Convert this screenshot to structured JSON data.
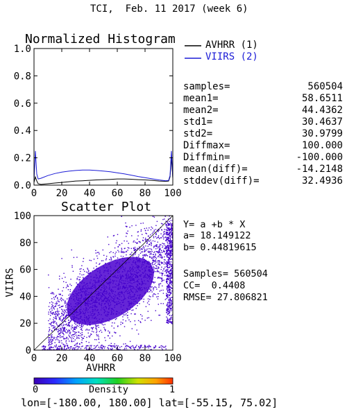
{
  "header": {
    "title": "TCI,  Feb. 11 2017 (week 6)"
  },
  "histogram": {
    "title": "Normalized Histogram",
    "legend": [
      {
        "label": "AVHRR (1)",
        "color": "#000000"
      },
      {
        "label": "VIIRS (2)",
        "color": "#1a1ad6"
      }
    ]
  },
  "stats": [
    {
      "key": "samples=",
      "value": "560504"
    },
    {
      "key": "mean1=",
      "value": "58.6511"
    },
    {
      "key": "mean2=",
      "value": "44.4362"
    },
    {
      "key": "std1=",
      "value": "30.4637"
    },
    {
      "key": "std2=",
      "value": "30.9799"
    },
    {
      "key": "Diffmax=",
      "value": "100.000"
    },
    {
      "key": "Diffmin=",
      "value": "-100.000"
    },
    {
      "key": "mean(diff)=",
      "value": "-14.2148"
    },
    {
      "key": "stddev(diff)=",
      "value": "32.4936"
    }
  ],
  "scatter": {
    "title": "Scatter Plot",
    "xlabel": "AVHRR",
    "ylabel": "VIIRS"
  },
  "regression": {
    "equation": "Y= a +b * X",
    "a": "a= 18.149122",
    "b": "b= 0.44819615",
    "samples": "Samples= 560504",
    "cc": "CC=  0.4408",
    "rmse": "RMSE= 27.806821"
  },
  "colorbar": {
    "label": "Density",
    "min": "0",
    "max": "1"
  },
  "footer": {
    "text": "lon=[-180.00, 180.00] lat=[-55.15, 75.02]"
  },
  "chart_data": [
    {
      "type": "line",
      "title": "Normalized Histogram",
      "xlim": [
        0,
        100
      ],
      "ylim": [
        0,
        1.0
      ],
      "x_ticks": [
        0,
        20,
        40,
        60,
        80,
        100
      ],
      "y_ticks": [
        0.0,
        0.2,
        0.4,
        0.6,
        0.8,
        1.0
      ],
      "x": [
        0,
        1,
        2,
        3,
        5,
        10,
        15,
        20,
        25,
        30,
        35,
        40,
        45,
        50,
        55,
        60,
        65,
        70,
        75,
        80,
        85,
        90,
        95,
        97,
        98,
        99,
        100
      ],
      "series": [
        {
          "name": "AVHRR (1)",
          "color": "#000000",
          "values": [
            0.02,
            0.06,
            0.03,
            0.01,
            0.005,
            0.01,
            0.015,
            0.02,
            0.025,
            0.03,
            0.032,
            0.035,
            0.038,
            0.04,
            0.042,
            0.045,
            0.045,
            0.043,
            0.04,
            0.038,
            0.035,
            0.03,
            0.028,
            0.03,
            0.06,
            0.2,
            0.05
          ]
        },
        {
          "name": "VIIRS (2)",
          "color": "#1a1ad6",
          "values": [
            0.03,
            0.25,
            0.08,
            0.045,
            0.05,
            0.07,
            0.085,
            0.095,
            0.102,
            0.107,
            0.11,
            0.11,
            0.107,
            0.103,
            0.098,
            0.09,
            0.082,
            0.073,
            0.063,
            0.055,
            0.046,
            0.038,
            0.032,
            0.035,
            0.07,
            0.25,
            0.05
          ]
        }
      ]
    },
    {
      "type": "scatter",
      "title": "Scatter Plot",
      "xlabel": "AVHRR",
      "ylabel": "VIIRS",
      "xlim": [
        0,
        100
      ],
      "ylim": [
        0,
        100
      ],
      "x_ticks": [
        0,
        20,
        40,
        60,
        80,
        100
      ],
      "y_ticks": [
        0,
        20,
        40,
        60,
        80,
        100
      ],
      "n_samples": 560504,
      "regression": {
        "a": 18.149122,
        "b": 0.44819615
      },
      "correlation": 0.4408,
      "rmse": 27.806821,
      "color_scale": {
        "label": "Density",
        "min": 0,
        "max": 1
      }
    }
  ]
}
